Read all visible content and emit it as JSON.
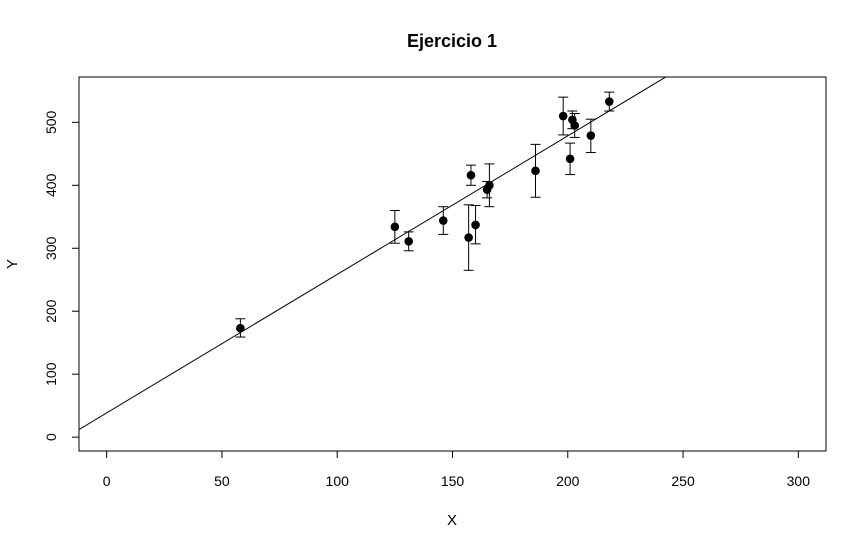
{
  "chart_data": {
    "type": "scatter",
    "title": "Ejercicio 1",
    "xlabel": "X",
    "ylabel": "Y",
    "xlim": [
      -12,
      312
    ],
    "ylim": [
      -22,
      572
    ],
    "xticks": [
      0,
      50,
      100,
      150,
      200,
      250,
      300
    ],
    "yticks": [
      0,
      100,
      200,
      300,
      400,
      500
    ],
    "grid": false,
    "legend": "none",
    "points": [
      {
        "x": 58,
        "y": 173,
        "err_low": 159,
        "err_high": 188
      },
      {
        "x": 125,
        "y": 334,
        "err_low": 308,
        "err_high": 360
      },
      {
        "x": 131,
        "y": 311,
        "err_low": 296,
        "err_high": 326
      },
      {
        "x": 146,
        "y": 344,
        "err_low": 322,
        "err_high": 366
      },
      {
        "x": 157,
        "y": 317,
        "err_low": 265,
        "err_high": 369
      },
      {
        "x": 158,
        "y": 416,
        "err_low": 400,
        "err_high": 432
      },
      {
        "x": 160,
        "y": 337,
        "err_low": 307,
        "err_high": 368
      },
      {
        "x": 165,
        "y": 393,
        "err_low": 380,
        "err_high": 406
      },
      {
        "x": 166,
        "y": 400,
        "err_low": 366,
        "err_high": 434
      },
      {
        "x": 186,
        "y": 423,
        "err_low": 381,
        "err_high": 465
      },
      {
        "x": 198,
        "y": 510,
        "err_low": 480,
        "err_high": 540
      },
      {
        "x": 201,
        "y": 442,
        "err_low": 417,
        "err_high": 467
      },
      {
        "x": 202,
        "y": 504,
        "err_low": 490,
        "err_high": 518
      },
      {
        "x": 203,
        "y": 495,
        "err_low": 476,
        "err_high": 514
      },
      {
        "x": 210,
        "y": 479,
        "err_low": 452,
        "err_high": 505
      },
      {
        "x": 218,
        "y": 533,
        "err_low": 518,
        "err_high": 548
      }
    ],
    "fit_line": {
      "intercept": 38.5,
      "slope": 2.2
    }
  }
}
